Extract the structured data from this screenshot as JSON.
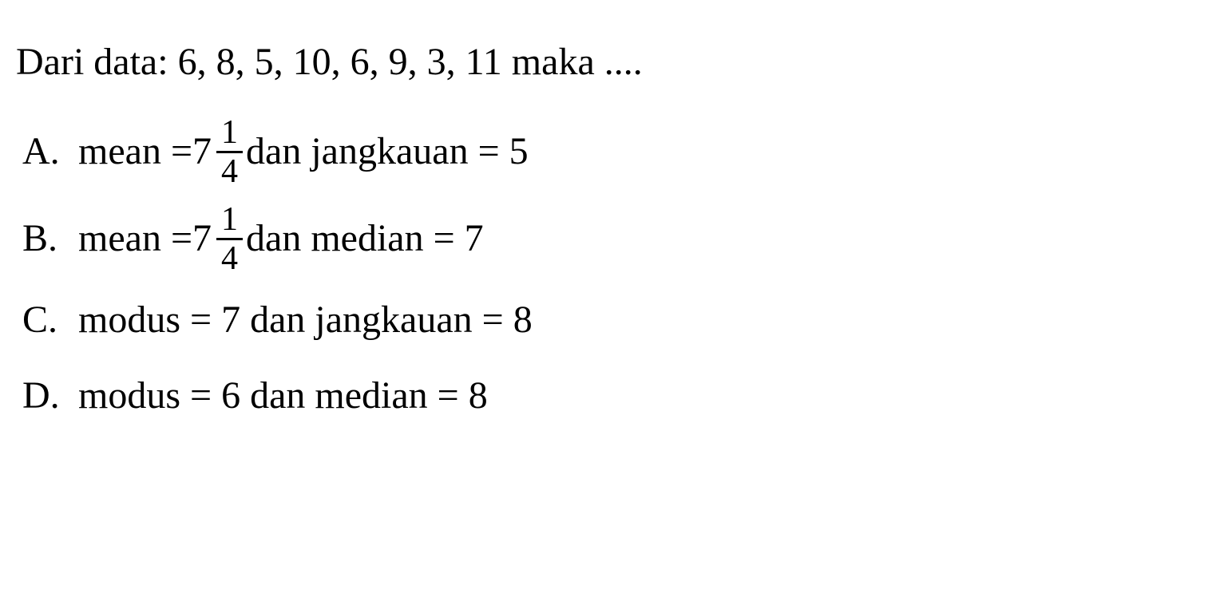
{
  "question": {
    "prefix": "Dari data: ",
    "data_values": "6, 8, 5, 10, 6, 9, 3, 11",
    "suffix": " maka ...."
  },
  "options": {
    "a": {
      "label": "A.",
      "text_before": "mean = ",
      "mixed_whole": "7",
      "frac_num": "1",
      "frac_den": "4",
      "text_after": " dan jangkauan = 5"
    },
    "b": {
      "label": "B.",
      "text_before": "mean = ",
      "mixed_whole": "7",
      "frac_num": "1",
      "frac_den": "4",
      "text_after": " dan median = 7"
    },
    "c": {
      "label": "C.",
      "text": "modus = 7 dan jangkauan = 8"
    },
    "d": {
      "label": "D.",
      "text": "modus = 6 dan median = 8"
    }
  },
  "styling": {
    "background_color": "#ffffff",
    "text_color": "#000000",
    "font_family": "Times New Roman",
    "base_fontsize": 48,
    "fraction_fontsize": 42,
    "fraction_border_width": 3,
    "line_height": 1.6
  }
}
